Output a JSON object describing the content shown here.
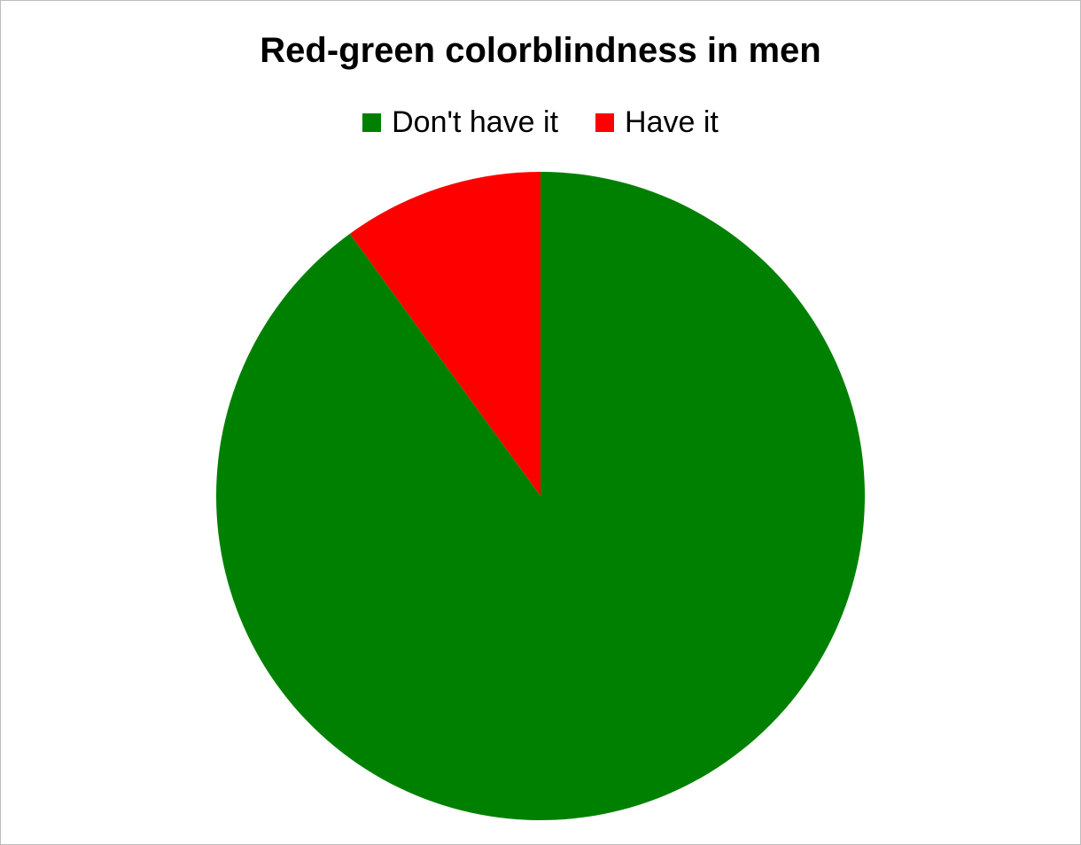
{
  "chart_data": {
    "type": "pie",
    "title": "Red-green colorblindness in men",
    "legend_position": "top",
    "start_angle": "12 o'clock, counter-clockwise listing of red slice before top",
    "series": [
      {
        "name": "",
        "categories": [
          "Don't have it",
          "Have it"
        ],
        "values": [
          90,
          10
        ],
        "colors": [
          "#008000",
          "#ff0000"
        ]
      }
    ]
  }
}
